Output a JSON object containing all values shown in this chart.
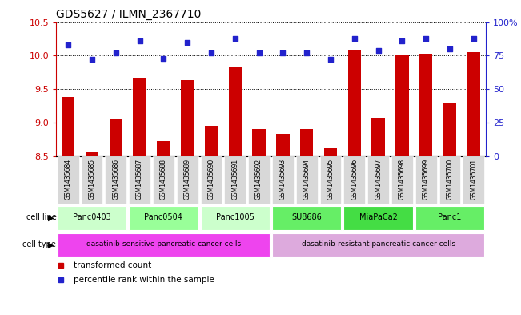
{
  "title": "GDS5627 / ILMN_2367710",
  "samples": [
    "GSM1435684",
    "GSM1435685",
    "GSM1435686",
    "GSM1435687",
    "GSM1435688",
    "GSM1435689",
    "GSM1435690",
    "GSM1435691",
    "GSM1435692",
    "GSM1435693",
    "GSM1435694",
    "GSM1435695",
    "GSM1435696",
    "GSM1435697",
    "GSM1435698",
    "GSM1435699",
    "GSM1435700",
    "GSM1435701"
  ],
  "bar_values": [
    9.38,
    8.55,
    9.05,
    9.67,
    8.72,
    9.63,
    8.95,
    9.83,
    8.9,
    8.83,
    8.9,
    8.62,
    10.08,
    9.07,
    10.02,
    10.03,
    9.28,
    10.05
  ],
  "dot_values": [
    83,
    72,
    77,
    86,
    73,
    85,
    77,
    88,
    77,
    77,
    77,
    72,
    88,
    79,
    86,
    88,
    80,
    88
  ],
  "ylim_left": [
    8.5,
    10.5
  ],
  "ylim_right": [
    0,
    100
  ],
  "yticks_left": [
    8.5,
    9.0,
    9.5,
    10.0,
    10.5
  ],
  "yticks_right": [
    0,
    25,
    50,
    75,
    100
  ],
  "ytick_labels_right": [
    "0",
    "25",
    "50",
    "75",
    "100%"
  ],
  "bar_color": "#cc0000",
  "dot_color": "#2222cc",
  "cell_lines": [
    {
      "name": "Panc0403",
      "start": 0,
      "end": 2,
      "color": "#ccffcc"
    },
    {
      "name": "Panc0504",
      "start": 3,
      "end": 5,
      "color": "#99ff99"
    },
    {
      "name": "Panc1005",
      "start": 6,
      "end": 8,
      "color": "#ccffcc"
    },
    {
      "name": "SU8686",
      "start": 9,
      "end": 11,
      "color": "#66ee66"
    },
    {
      "name": "MiaPaCa2",
      "start": 12,
      "end": 14,
      "color": "#44dd44"
    },
    {
      "name": "Panc1",
      "start": 15,
      "end": 17,
      "color": "#66ee66"
    }
  ],
  "cell_type_groups": [
    {
      "name": "dasatinib-sensitive pancreatic cancer cells",
      "start": 0,
      "end": 8,
      "color": "#ee44ee"
    },
    {
      "name": "dasatinib-resistant pancreatic cancer cells",
      "start": 9,
      "end": 17,
      "color": "#ddaadd"
    }
  ],
  "legend_items": [
    {
      "label": "transformed count",
      "color": "#cc0000"
    },
    {
      "label": "percentile rank within the sample",
      "color": "#2222cc"
    }
  ],
  "grid_color": "black",
  "background_color": "white",
  "tick_color_left": "#cc0000",
  "tick_color_right": "#2222cc",
  "label_left": "cell line",
  "label_right_arrow": true
}
